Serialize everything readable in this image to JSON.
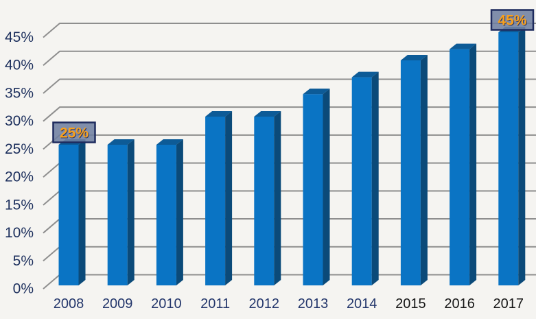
{
  "chart_data": {
    "type": "bar",
    "title": "",
    "xlabel": "",
    "ylabel": "",
    "categories": [
      "2008",
      "2009",
      "2010",
      "2011",
      "2012",
      "2013",
      "2014",
      "2015",
      "2016",
      "2017"
    ],
    "values": [
      25,
      25,
      25,
      30,
      30,
      34,
      37,
      40,
      42,
      45
    ],
    "unit": "%",
    "ylim": [
      0,
      45
    ],
    "y_tick_step": 5,
    "y_tick_labels": [
      "0%",
      "5%",
      "10%",
      "15%",
      "20%",
      "25%",
      "30%",
      "35%",
      "40%",
      "45%"
    ],
    "grid": "horizontal-3d-elbow",
    "legend": "none",
    "style": "3d-column",
    "callouts": [
      {
        "value_index": 0,
        "label": "25%"
      },
      {
        "value_index": 9,
        "label": "45%"
      }
    ],
    "x_tick_colors": [
      "#23366b",
      "#23366b",
      "#23366b",
      "#23366b",
      "#23366b",
      "#23366b",
      "#23366b",
      "#161616",
      "#161616",
      "#161616"
    ]
  },
  "colors": {
    "background": "#f5f4f1",
    "bar_front": "#0a74c4",
    "bar_top": "#0d5b97",
    "bar_side": "#0b4a79",
    "gridline": "#8e8e8e",
    "y_tick_color": "#1b2e5c",
    "callout_fill": "#6f7fa0",
    "callout_border": "#1e2b5e",
    "callout_text": "#f9a01b"
  }
}
